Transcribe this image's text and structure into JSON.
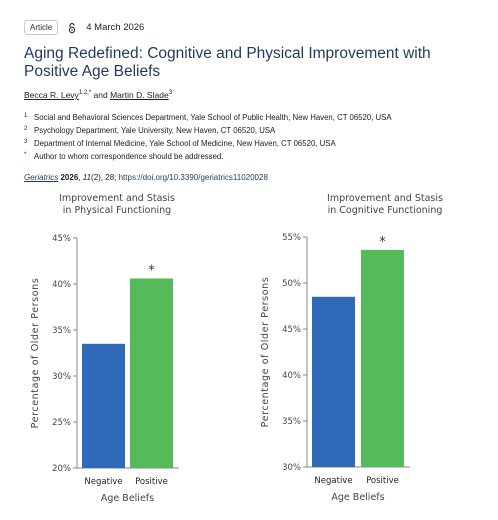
{
  "article": {
    "type_badge": "Article",
    "date": "4 March 2026",
    "title": "Aging Redefined: Cognitive and Physical Improvement with Positive Age Beliefs",
    "authors": [
      {
        "name": "Becca R. Levy",
        "sup": "1,2,*"
      },
      {
        "name": "Martin D. Slade",
        "sup": "3"
      }
    ],
    "authors_conjunction": "and",
    "affiliations": [
      {
        "n": "1",
        "text": "Social and Behavioral Sciences Department, Yale School of Public Health, New Haven, CT 06520, USA"
      },
      {
        "n": "2",
        "text": "Psychology Department, Yale University, New Haven, CT 06520, USA"
      },
      {
        "n": "3",
        "text": "Department of Internal Medicine, Yale School of Medicine, New Haven, CT 06520, USA"
      },
      {
        "n": "*",
        "text": "Author to whom correspondence should be addressed."
      }
    ],
    "citation": {
      "journal": "Geriatrics",
      "year": "2026",
      "volume": "11",
      "rest": "(2), 28; ",
      "doi": "https://doi.org/10.3390/geriatrics11020028"
    }
  },
  "colors": {
    "negative": "#2f6ab8",
    "positive": "#55bb5a",
    "title": "#1e3a5c"
  },
  "chart_data": [
    {
      "type": "bar",
      "title": "Improvement and Stasis in Physical Functioning",
      "title_lines": [
        "Improvement and Stasis",
        "in Physical Functioning"
      ],
      "xlabel": "Age Beliefs",
      "ylabel": "Percentage of Older Persons",
      "categories": [
        "Negative",
        "Positive"
      ],
      "values": [
        33.5,
        40.6
      ],
      "ylim": [
        20,
        45
      ],
      "yticks": [
        20,
        25,
        30,
        35,
        40,
        45
      ],
      "ytick_labels": [
        "20%",
        "25%",
        "30%",
        "35%",
        "40%",
        "45%"
      ],
      "annotations": [
        {
          "category": "Positive",
          "text": "*"
        }
      ]
    },
    {
      "type": "bar",
      "title": "Improvement and Stasis in Cognitive Functioning",
      "title_lines": [
        "Improvement and Stasis",
        "in Cognitive Functioning"
      ],
      "xlabel": "Age Beliefs",
      "ylabel": "Percentage of Older Persons",
      "categories": [
        "Negative",
        "Positive"
      ],
      "values": [
        48.5,
        53.6
      ],
      "ylim": [
        30,
        55
      ],
      "yticks": [
        30,
        35,
        40,
        45,
        50,
        55
      ],
      "ytick_labels": [
        "30%",
        "35%",
        "40%",
        "45%",
        "50%",
        "55%"
      ],
      "annotations": [
        {
          "category": "Positive",
          "text": "*"
        }
      ]
    }
  ]
}
